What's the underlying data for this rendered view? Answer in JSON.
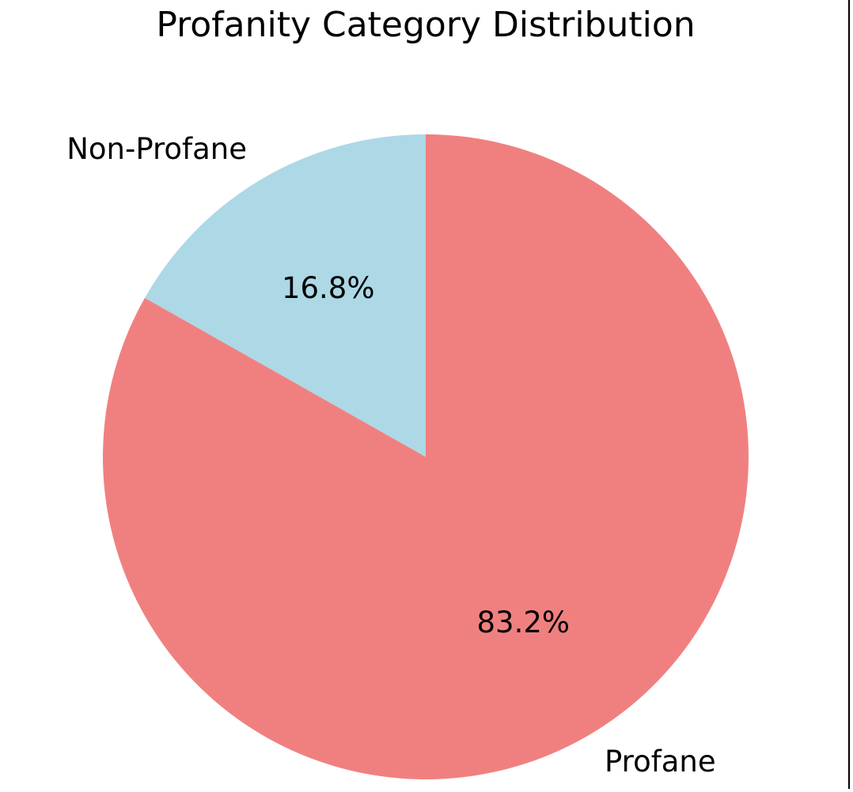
{
  "chart_data": {
    "type": "pie",
    "title": "Profanity Category Distribution",
    "categories": [
      "Non-Profane",
      "Profane"
    ],
    "values": [
      16.8,
      83.2
    ],
    "labels": [
      "16.8%",
      "83.2%"
    ],
    "colors": [
      "#add8e6",
      "#f08080"
    ],
    "start_angle": "90",
    "direction": "counterclockwise",
    "legend": "none"
  }
}
